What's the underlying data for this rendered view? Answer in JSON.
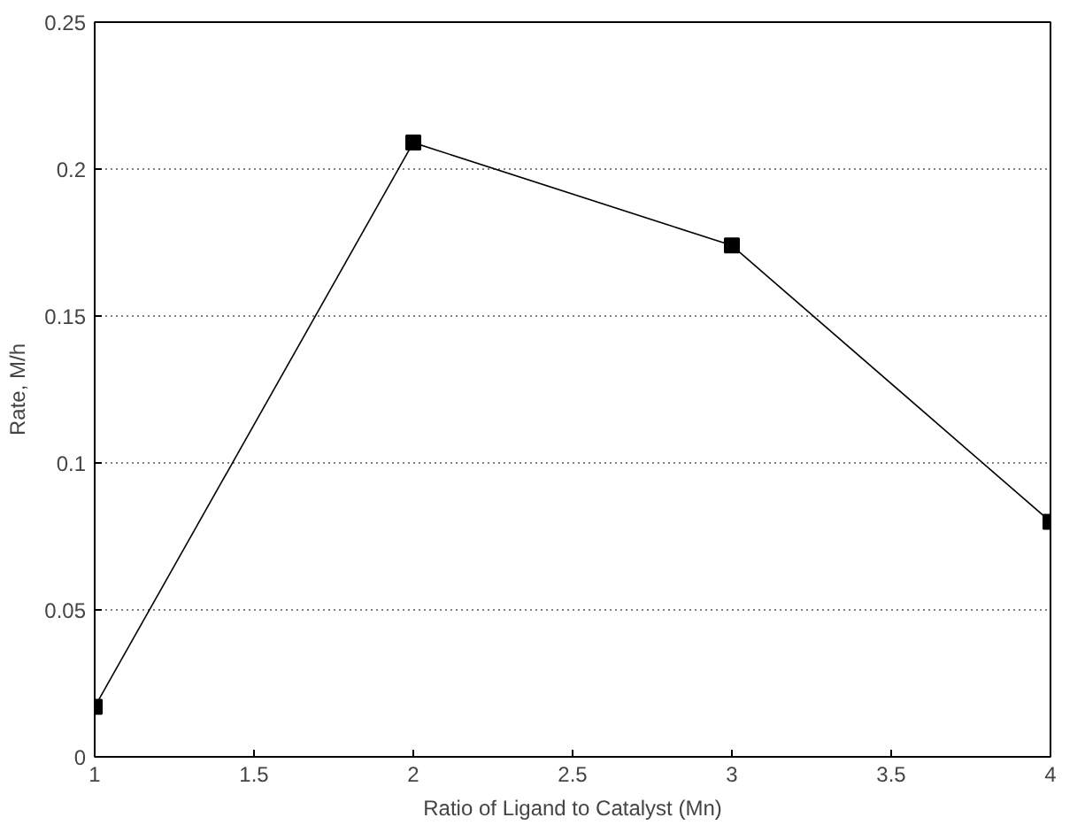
{
  "chart_data": {
    "type": "line",
    "xlabel": "Ratio of Ligand to Catalyst (Mn)",
    "ylabel": "Rate, M/h",
    "x": [
      1,
      2,
      3,
      4
    ],
    "series": [
      {
        "color": "#000000",
        "values": [
          0.017,
          0.209,
          0.174,
          0.08
        ]
      }
    ],
    "xlim": [
      1,
      4
    ],
    "xticks": [
      1,
      1.5,
      2,
      2.5,
      3,
      3.5,
      4
    ],
    "ylim": [
      0,
      0.25
    ],
    "yticks": [
      0,
      0.05,
      0.1,
      0.15,
      0.2,
      0.25
    ],
    "grid": "y",
    "marker": "square",
    "line_style": "solid"
  }
}
